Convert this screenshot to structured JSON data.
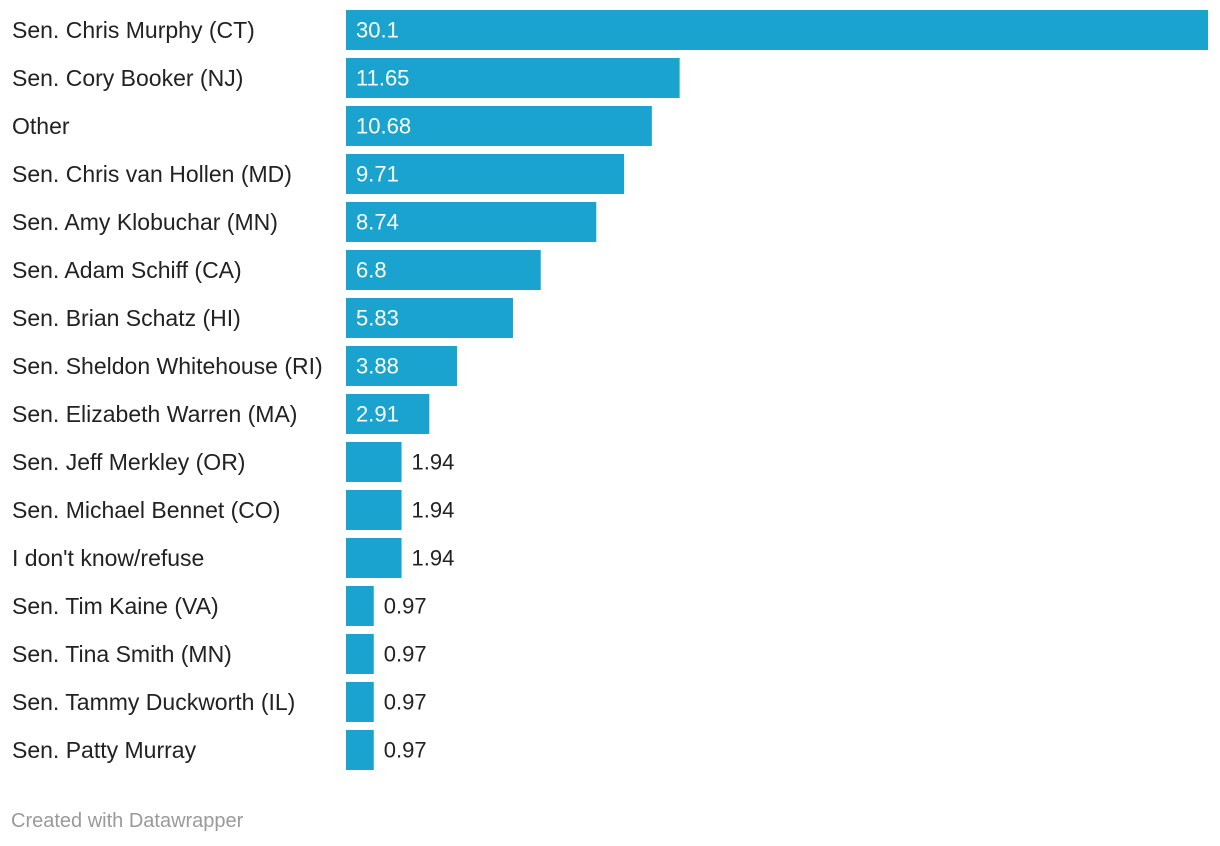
{
  "chart_data": {
    "type": "bar",
    "orientation": "horizontal",
    "categories": [
      "Sen. Chris Murphy (CT)",
      "Sen. Cory Booker (NJ)",
      "Other",
      "Sen. Chris van Hollen (MD)",
      "Sen. Amy Klobuchar (MN)",
      "Sen. Adam Schiff (CA)",
      "Sen. Brian Schatz (HI)",
      "Sen. Sheldon Whitehouse (RI)",
      "Sen. Elizabeth Warren (MA)",
      "Sen. Jeff Merkley (OR)",
      "Sen. Michael Bennet (CO)",
      "I don't know/refuse",
      "Sen. Tim Kaine (VA)",
      "Sen. Tina Smith (MN)",
      "Sen. Tammy Duckworth (IL)",
      "Sen. Patty Murray"
    ],
    "values": [
      30.1,
      11.65,
      10.68,
      9.71,
      8.74,
      6.8,
      5.83,
      3.88,
      2.91,
      1.94,
      1.94,
      1.94,
      0.97,
      0.97,
      0.97,
      0.97
    ],
    "value_labels": [
      "30.1",
      "11.65",
      "10.68",
      "9.71",
      "8.74",
      "6.8",
      "5.83",
      "3.88",
      "2.91",
      "1.94",
      "1.94",
      "1.94",
      "0.97",
      "0.97",
      "0.97",
      "0.97"
    ],
    "xlim": [
      0,
      30.1
    ],
    "title": "",
    "xlabel": "",
    "ylabel": "",
    "bar_color": "#1aa3cf",
    "label_inside_color": "#ffffff",
    "label_outside_color": "#222222"
  },
  "footer": {
    "credit": "Created with Datawrapper"
  }
}
